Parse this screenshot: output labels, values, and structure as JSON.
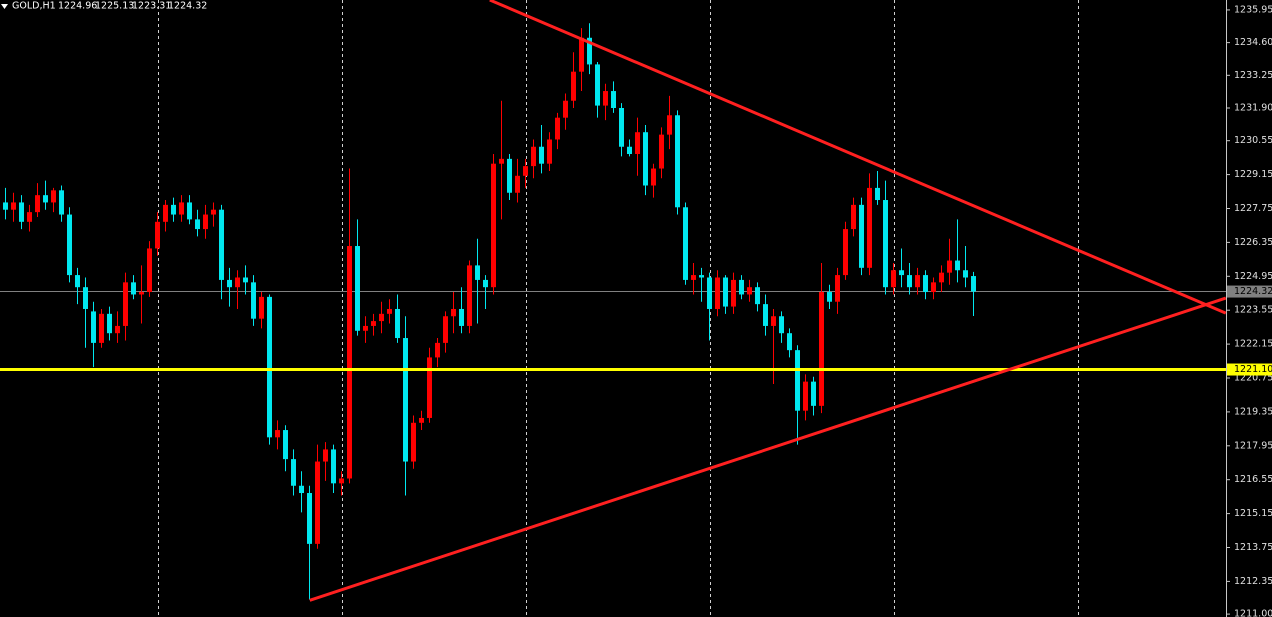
{
  "chart_data": {
    "type": "candlestick",
    "title": "GOLD,H1",
    "up_color": "#ff0000",
    "down_color": "#00e8f0",
    "xlim": [
      -0.625,
      152.625
    ],
    "ylim": [
      1210.88,
      1236.36
    ],
    "yticks": [
      1235.95,
      {
        "value": 1234.6,
        "label": "1234.60"
      },
      1233.25,
      {
        "value": 1231.9,
        "label": "1231.90"
      },
      1230.55,
      1229.15,
      1227.75,
      1226.35,
      1224.95,
      1223.55,
      1222.15,
      1220.75,
      1219.35,
      1217.95,
      1216.55,
      1215.15,
      1213.75,
      1212.35,
      {
        "value": 1211,
        "label": "1211.00"
      }
    ],
    "separators": [
      19.1,
      42.1,
      65.1,
      88.1,
      111.1,
      134.1
    ],
    "last_price": 1224.32,
    "level": {
      "value": 1221.1,
      "label": "1221.10"
    },
    "level_color": "#ffff00",
    "trendlines": [
      {
        "color": "#ff2020",
        "points": [
          [
            60.6,
            1236.36
          ],
          [
            152.6,
            1223.43
          ]
        ]
      },
      {
        "color": "#ff2020",
        "points": [
          [
            38.1,
            1211.57
          ],
          [
            152.6,
            1224.05
          ]
        ]
      }
    ],
    "ohlc": [
      [
        1228.0,
        1228.6,
        1227.3,
        1227.7
      ],
      [
        1227.7,
        1228.4,
        1227.2,
        1228.0
      ],
      [
        1228.0,
        1228.3,
        1226.9,
        1227.2
      ],
      [
        1227.2,
        1227.9,
        1226.8,
        1227.6
      ],
      [
        1227.6,
        1228.8,
        1227.4,
        1228.3
      ],
      [
        1228.3,
        1228.9,
        1227.7,
        1228.0
      ],
      [
        1228.0,
        1228.6,
        1227.6,
        1228.5
      ],
      [
        1228.5,
        1228.7,
        1227.2,
        1227.5
      ],
      [
        1227.5,
        1227.8,
        1224.7,
        1225.0
      ],
      [
        1225.0,
        1225.3,
        1223.8,
        1224.5
      ],
      [
        1224.5,
        1224.9,
        1222.0,
        1223.6
      ],
      [
        1223.5,
        1223.9,
        1221.2,
        1222.2
      ],
      [
        1222.2,
        1223.6,
        1222.0,
        1223.4
      ],
      [
        1223.4,
        1223.7,
        1222.3,
        1222.6
      ],
      [
        1222.6,
        1223.5,
        1222.2,
        1222.9
      ],
      [
        1222.9,
        1225.1,
        1222.3,
        1224.7
      ],
      [
        1224.7,
        1225.0,
        1224.0,
        1224.2
      ],
      [
        1224.2,
        1225.4,
        1223.0,
        1224.3
      ],
      [
        1224.3,
        1226.4,
        1224.1,
        1226.1
      ],
      [
        1226.1,
        1227.6,
        1225.8,
        1227.2
      ],
      [
        1227.2,
        1228.1,
        1226.8,
        1227.9
      ],
      [
        1227.9,
        1228.2,
        1227.2,
        1227.5
      ],
      [
        1227.5,
        1228.3,
        1227.2,
        1228.0
      ],
      [
        1228.0,
        1228.3,
        1227.1,
        1227.3
      ],
      [
        1227.3,
        1227.7,
        1226.6,
        1226.9
      ],
      [
        1226.9,
        1227.9,
        1226.5,
        1227.5
      ],
      [
        1227.5,
        1228.0,
        1227.0,
        1227.7
      ],
      [
        1227.7,
        1227.9,
        1224.0,
        1224.8
      ],
      [
        1224.8,
        1225.3,
        1223.7,
        1224.5
      ],
      [
        1224.5,
        1225.2,
        1223.6,
        1224.9
      ],
      [
        1224.9,
        1225.4,
        1224.2,
        1224.7
      ],
      [
        1224.7,
        1225.0,
        1222.9,
        1223.2
      ],
      [
        1223.2,
        1224.3,
        1222.8,
        1224.1
      ],
      [
        1224.1,
        1224.2,
        1218.0,
        1218.3
      ],
      [
        1218.3,
        1219.0,
        1217.8,
        1218.6
      ],
      [
        1218.6,
        1218.8,
        1216.9,
        1217.4
      ],
      [
        1217.4,
        1217.8,
        1215.9,
        1216.3
      ],
      [
        1216.3,
        1216.9,
        1215.2,
        1216.0
      ],
      [
        1216.0,
        1216.3,
        1211.6,
        1213.9
      ],
      [
        1213.9,
        1218.0,
        1213.7,
        1217.3
      ],
      [
        1217.3,
        1218.1,
        1216.5,
        1217.8
      ],
      [
        1217.8,
        1218.0,
        1216.0,
        1216.4
      ],
      [
        1216.4,
        1216.9,
        1215.9,
        1216.6
      ],
      [
        1216.6,
        1229.4,
        1216.4,
        1226.2
      ],
      [
        1226.2,
        1227.3,
        1222.5,
        1222.7
      ],
      [
        1222.7,
        1223.3,
        1222.2,
        1222.9
      ],
      [
        1222.9,
        1223.4,
        1222.5,
        1223.1
      ],
      [
        1223.1,
        1223.9,
        1222.6,
        1223.4
      ],
      [
        1223.4,
        1224.0,
        1223.0,
        1223.6
      ],
      [
        1223.6,
        1224.2,
        1222.2,
        1222.4
      ],
      [
        1222.4,
        1223.3,
        1215.9,
        1217.3
      ],
      [
        1217.3,
        1219.2,
        1217.0,
        1218.9
      ],
      [
        1218.9,
        1219.4,
        1218.6,
        1219.1
      ],
      [
        1219.1,
        1222.0,
        1218.9,
        1221.6
      ],
      [
        1221.6,
        1222.4,
        1221.2,
        1222.2
      ],
      [
        1222.2,
        1223.5,
        1221.8,
        1223.3
      ],
      [
        1223.3,
        1224.3,
        1222.6,
        1223.6
      ],
      [
        1223.6,
        1224.5,
        1222.6,
        1222.9
      ],
      [
        1222.9,
        1225.6,
        1222.6,
        1225.4
      ],
      [
        1225.4,
        1226.5,
        1223.0,
        1224.8
      ],
      [
        1224.8,
        1225.0,
        1223.6,
        1224.5
      ],
      [
        1224.5,
        1230.0,
        1224.2,
        1229.6
      ],
      [
        1229.6,
        1232.2,
        1227.3,
        1229.8
      ],
      [
        1229.8,
        1230.0,
        1228.1,
        1228.4
      ],
      [
        1228.4,
        1229.8,
        1228.0,
        1229.1
      ],
      [
        1229.1,
        1229.8,
        1228.6,
        1229.5
      ],
      [
        1229.5,
        1230.6,
        1229.0,
        1230.3
      ],
      [
        1230.3,
        1231.2,
        1229.2,
        1229.6
      ],
      [
        1229.6,
        1230.9,
        1229.3,
        1230.6
      ],
      [
        1230.6,
        1231.7,
        1230.2,
        1231.5
      ],
      [
        1231.5,
        1232.5,
        1231.0,
        1232.2
      ],
      [
        1232.2,
        1234.2,
        1231.9,
        1233.4
      ],
      [
        1233.4,
        1235.2,
        1232.6,
        1234.8
      ],
      [
        1234.8,
        1235.4,
        1233.3,
        1233.7
      ],
      [
        1233.7,
        1233.8,
        1231.5,
        1232.0
      ],
      [
        1232.0,
        1232.9,
        1231.4,
        1232.6
      ],
      [
        1232.6,
        1233.0,
        1231.7,
        1231.9
      ],
      [
        1231.9,
        1232.1,
        1229.9,
        1230.3
      ],
      [
        1230.3,
        1230.6,
        1229.9,
        1230.0
      ],
      [
        1230.0,
        1231.5,
        1229.1,
        1230.9
      ],
      [
        1230.9,
        1231.2,
        1228.3,
        1228.7
      ],
      [
        1228.7,
        1229.6,
        1228.2,
        1229.4
      ],
      [
        1229.4,
        1231.1,
        1229.0,
        1230.8
      ],
      [
        1230.8,
        1232.4,
        1230.2,
        1231.6
      ],
      [
        1231.6,
        1231.8,
        1227.5,
        1227.8
      ],
      [
        1227.8,
        1228.0,
        1224.6,
        1224.8
      ],
      [
        1224.8,
        1225.5,
        1224.2,
        1225.0
      ],
      [
        1225.0,
        1225.3,
        1223.9,
        1224.9
      ],
      [
        1224.9,
        1225.1,
        1222.3,
        1223.6
      ],
      [
        1223.6,
        1225.2,
        1223.3,
        1224.9
      ],
      [
        1224.9,
        1225.0,
        1223.4,
        1223.7
      ],
      [
        1223.7,
        1225.1,
        1223.4,
        1224.8
      ],
      [
        1224.8,
        1225.0,
        1224.0,
        1224.2
      ],
      [
        1224.2,
        1224.8,
        1223.9,
        1224.5
      ],
      [
        1224.5,
        1224.7,
        1223.5,
        1223.8
      ],
      [
        1223.8,
        1224.2,
        1222.5,
        1222.9
      ],
      [
        1222.9,
        1223.6,
        1220.5,
        1223.3
      ],
      [
        1223.3,
        1223.5,
        1222.2,
        1222.6
      ],
      [
        1222.6,
        1222.8,
        1221.6,
        1221.9
      ],
      [
        1221.9,
        1222.1,
        1218.0,
        1219.4
      ],
      [
        1219.4,
        1220.9,
        1219.0,
        1220.6
      ],
      [
        1220.6,
        1220.8,
        1219.2,
        1219.6
      ],
      [
        1219.6,
        1225.5,
        1219.3,
        1224.3
      ],
      [
        1224.3,
        1224.6,
        1223.6,
        1223.9
      ],
      [
        1223.9,
        1225.3,
        1223.4,
        1225.0
      ],
      [
        1225.0,
        1227.2,
        1224.8,
        1226.9
      ],
      [
        1226.9,
        1228.2,
        1226.6,
        1227.9
      ],
      [
        1227.9,
        1228.2,
        1225.0,
        1225.3
      ],
      [
        1225.3,
        1229.2,
        1225.0,
        1228.6
      ],
      [
        1228.6,
        1229.3,
        1227.9,
        1228.1
      ],
      [
        1228.1,
        1228.9,
        1224.2,
        1224.5
      ],
      [
        1224.5,
        1225.5,
        1224.2,
        1225.2
      ],
      [
        1225.2,
        1226.1,
        1224.5,
        1225.0
      ],
      [
        1225.0,
        1225.5,
        1224.2,
        1224.5
      ],
      [
        1224.5,
        1225.3,
        1224.2,
        1225.0
      ],
      [
        1225.0,
        1225.2,
        1224.0,
        1224.3
      ],
      [
        1224.3,
        1224.9,
        1224.0,
        1224.7
      ],
      [
        1224.7,
        1225.4,
        1224.3,
        1225.1
      ],
      [
        1225.1,
        1226.5,
        1224.6,
        1225.6
      ],
      [
        1225.6,
        1227.3,
        1224.7,
        1225.2
      ],
      [
        1225.2,
        1226.2,
        1224.5,
        1224.9
      ],
      [
        1224.96,
        1225.13,
        1223.31,
        1224.32
      ]
    ]
  }
}
